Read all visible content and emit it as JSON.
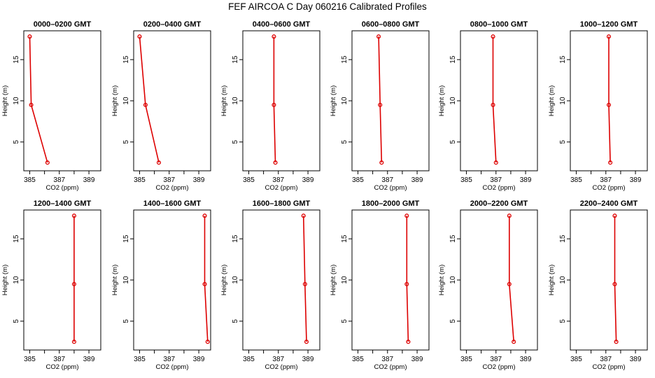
{
  "title": "FEF AIRCOA C  Day 060216  Calibrated Profiles",
  "chart_data": {
    "type": "line",
    "layout": "2x6 small multiples",
    "xlabel": "CO2 (ppm)",
    "ylabel": "Height (m)",
    "xlim": [
      384.6,
      389.8
    ],
    "ylim": [
      1.5,
      18.5
    ],
    "xticks": [
      385,
      387,
      389
    ],
    "xticks_unlabeled": [
      386,
      388
    ],
    "yticks": [
      5,
      10,
      15
    ],
    "grid": false,
    "colors": {
      "line": "#dd0000",
      "marker": "#dd0000"
    },
    "panels": [
      {
        "title": "0000–0200 GMT",
        "x": [
          385.0,
          385.1,
          386.2
        ],
        "y": [
          17.8,
          9.5,
          2.5
        ]
      },
      {
        "title": "0200–0400 GMT",
        "x": [
          385.0,
          385.4,
          386.3
        ],
        "y": [
          17.8,
          9.5,
          2.5
        ]
      },
      {
        "title": "0400–0600 GMT",
        "x": [
          386.7,
          386.7,
          386.8
        ],
        "y": [
          17.8,
          9.5,
          2.5
        ]
      },
      {
        "title": "0600–0800 GMT",
        "x": [
          386.4,
          386.5,
          386.6
        ],
        "y": [
          17.8,
          9.5,
          2.5
        ]
      },
      {
        "title": "0800–1000 GMT",
        "x": [
          386.8,
          386.8,
          387.0
        ],
        "y": [
          17.8,
          9.5,
          2.5
        ]
      },
      {
        "title": "1000–1200 GMT",
        "x": [
          387.2,
          387.2,
          387.3
        ],
        "y": [
          17.8,
          9.5,
          2.5
        ]
      },
      {
        "title": "1200–1400 GMT",
        "x": [
          388.0,
          388.0,
          388.0
        ],
        "y": [
          17.8,
          9.5,
          2.5
        ]
      },
      {
        "title": "1400–1600 GMT",
        "x": [
          389.4,
          389.4,
          389.6
        ],
        "y": [
          17.8,
          9.5,
          2.5
        ]
      },
      {
        "title": "1600–1800 GMT",
        "x": [
          388.7,
          388.8,
          388.9
        ],
        "y": [
          17.8,
          9.5,
          2.5
        ]
      },
      {
        "title": "1800–2000 GMT",
        "x": [
          388.3,
          388.3,
          388.4
        ],
        "y": [
          17.8,
          9.5,
          2.5
        ]
      },
      {
        "title": "2000–2200 GMT",
        "x": [
          387.9,
          387.9,
          388.2
        ],
        "y": [
          17.8,
          9.5,
          2.5
        ]
      },
      {
        "title": "2200–2400 GMT",
        "x": [
          387.6,
          387.6,
          387.7
        ],
        "y": [
          17.8,
          9.5,
          2.5
        ]
      }
    ]
  }
}
